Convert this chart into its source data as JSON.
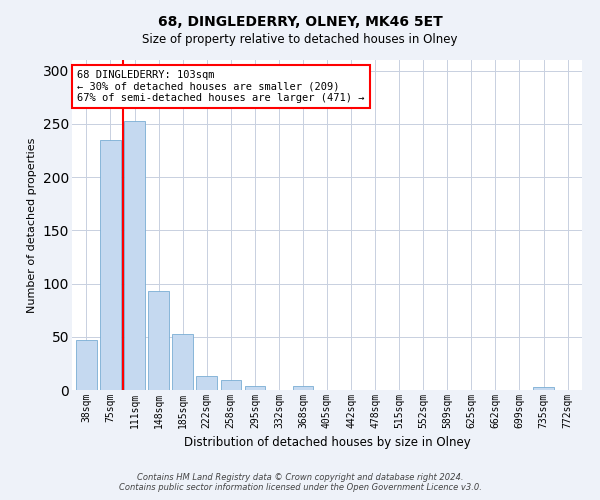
{
  "title": "68, DINGLEDERRY, OLNEY, MK46 5ET",
  "subtitle": "Size of property relative to detached houses in Olney",
  "xlabel": "Distribution of detached houses by size in Olney",
  "ylabel": "Number of detached properties",
  "categories": [
    "38sqm",
    "75sqm",
    "111sqm",
    "148sqm",
    "185sqm",
    "222sqm",
    "258sqm",
    "295sqm",
    "332sqm",
    "368sqm",
    "405sqm",
    "442sqm",
    "478sqm",
    "515sqm",
    "552sqm",
    "589sqm",
    "625sqm",
    "662sqm",
    "699sqm",
    "735sqm",
    "772sqm"
  ],
  "values": [
    47,
    235,
    253,
    93,
    53,
    13,
    9,
    4,
    0,
    4,
    0,
    0,
    0,
    0,
    0,
    0,
    0,
    0,
    0,
    3,
    0
  ],
  "bar_color": "#c5d9f0",
  "bar_edge_color": "#7aadd4",
  "redline_index": 1.5,
  "annotation_title": "68 DINGLEDERRY: 103sqm",
  "annotation_line1": "← 30% of detached houses are smaller (209)",
  "annotation_line2": "67% of semi-detached houses are larger (471) →",
  "ylim": [
    0,
    310
  ],
  "yticks": [
    0,
    50,
    100,
    150,
    200,
    250,
    300
  ],
  "footer_line1": "Contains HM Land Registry data © Crown copyright and database right 2024.",
  "footer_line2": "Contains public sector information licensed under the Open Government Licence v3.0.",
  "bg_color": "#eef2f9",
  "plot_bg_color": "#ffffff",
  "grid_color": "#c8d0e0"
}
